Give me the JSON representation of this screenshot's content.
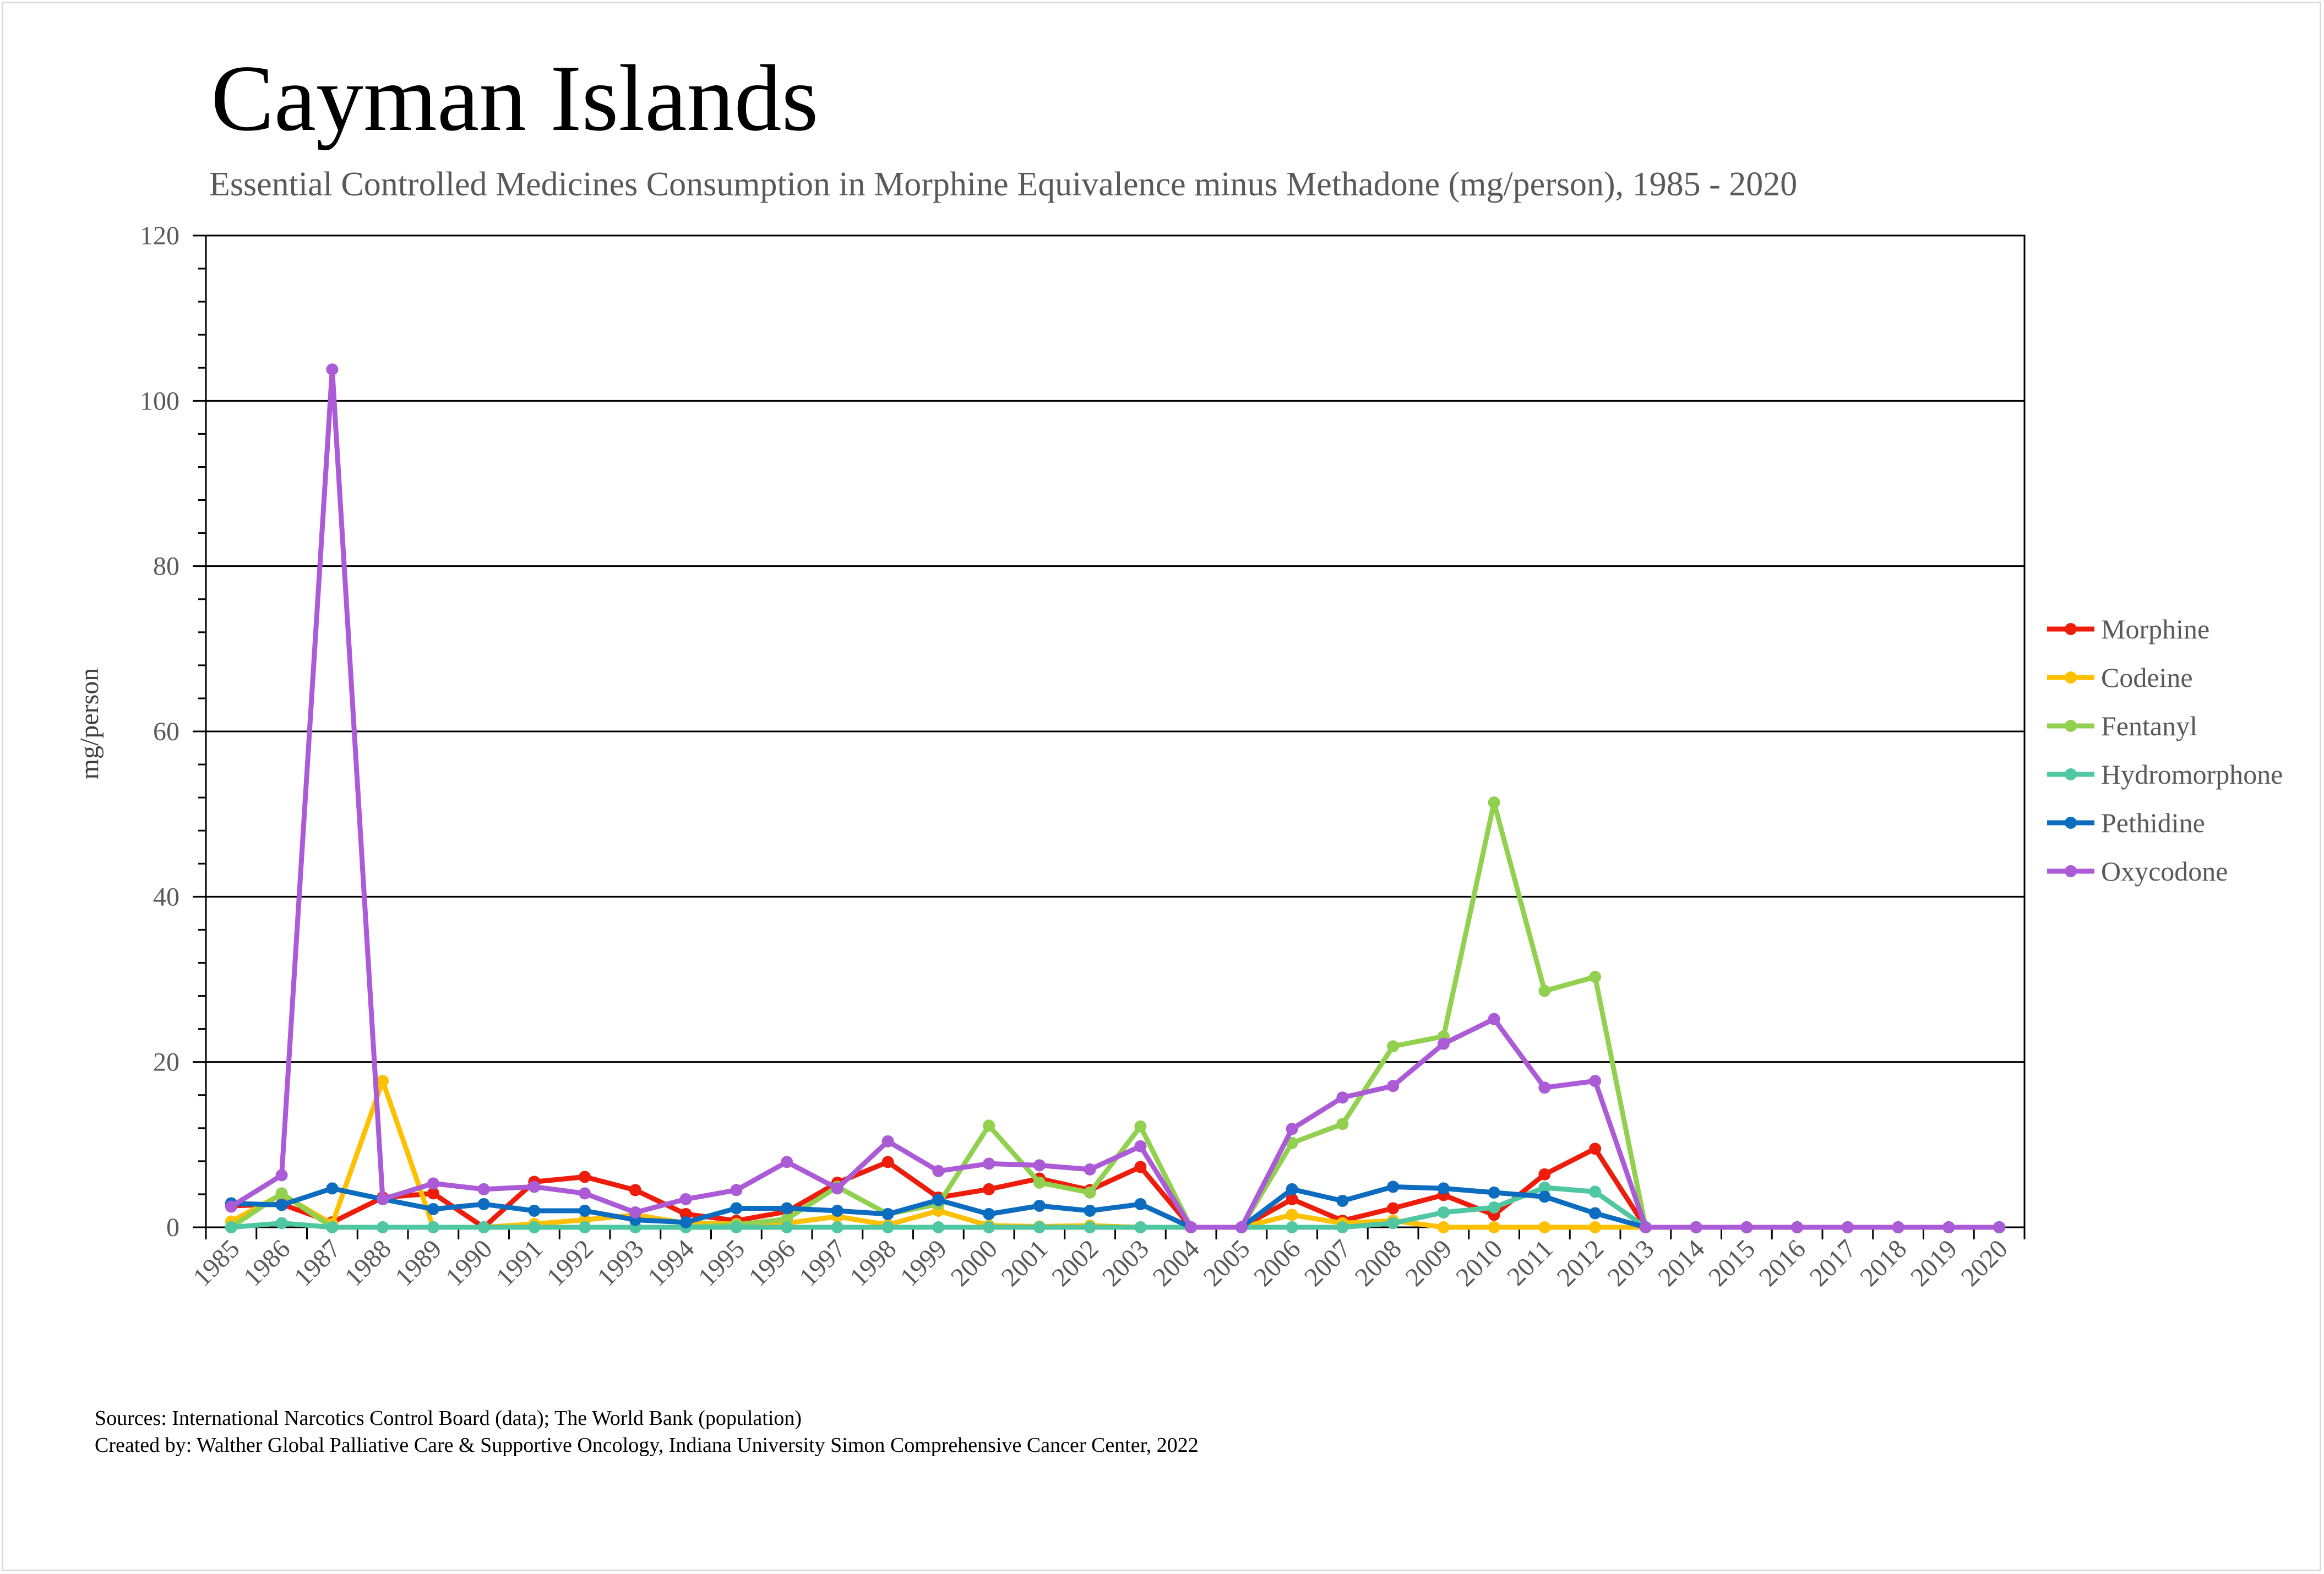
{
  "chart_data": {
    "type": "line",
    "title": "Cayman Islands",
    "subtitle": "Essential Controlled Medicines Consumption in Morphine Equivalence minus Methadone (mg/person), 1985 - 2020",
    "ylabel": "mg/person",
    "xlabel": "",
    "ylim": [
      0,
      120
    ],
    "yticks": [
      "0",
      "20",
      "40",
      "60",
      "80",
      "100",
      "120"
    ],
    "grid": true,
    "legend_position": "right",
    "categories": [
      "1985",
      "1986",
      "1987",
      "1988",
      "1989",
      "1990",
      "1991",
      "1992",
      "1993",
      "1994",
      "1995",
      "1996",
      "1997",
      "1998",
      "1999",
      "2000",
      "2001",
      "2002",
      "2003",
      "2004",
      "2005",
      "2006",
      "2007",
      "2008",
      "2009",
      "2010",
      "2011",
      "2012",
      "2013",
      "2014",
      "2015",
      "2016",
      "2017",
      "2018",
      "2019",
      "2020"
    ],
    "series": [
      {
        "name": "Morphine",
        "color": "#ee1c0a",
        "values": [
          2.6,
          2.8,
          0.6,
          3.6,
          4.1,
          0,
          5.5,
          6.1,
          4.5,
          1.6,
          0.8,
          1.9,
          5.4,
          7.9,
          3.6,
          4.6,
          5.9,
          4.5,
          7.3,
          0,
          0,
          3.4,
          0.8,
          2.3,
          3.9,
          1.5,
          6.4,
          9.5,
          0,
          0,
          0,
          0,
          0,
          0,
          0,
          0
        ]
      },
      {
        "name": "Codeine",
        "color": "#ffc000",
        "values": [
          0.7,
          4,
          0.4,
          17.7,
          0,
          0,
          0.4,
          0.9,
          1.5,
          0.5,
          0.4,
          0.5,
          1.3,
          0.3,
          2,
          0.2,
          0.1,
          0.2,
          0,
          0,
          0,
          1.5,
          0.5,
          0.8,
          0,
          0,
          0,
          0,
          0,
          0,
          0,
          0,
          0,
          0,
          0,
          0
        ]
      },
      {
        "name": "Fentanyl",
        "color": "#92d050",
        "values": [
          0,
          4.1,
          0,
          0,
          0,
          0,
          0,
          0,
          0,
          0,
          0.3,
          1,
          4.9,
          1.6,
          2.8,
          12.3,
          5.4,
          4.2,
          12.2,
          0,
          0,
          10.2,
          12.5,
          21.9,
          23.1,
          51.4,
          28.6,
          30.3,
          0,
          0,
          0,
          0,
          0,
          0,
          0,
          0
        ]
      },
      {
        "name": "Hydromorphone",
        "color": "#4fc7a0",
        "values": [
          0,
          0.5,
          0,
          0,
          0,
          0,
          0,
          0,
          0,
          0,
          0,
          0,
          0,
          0,
          0,
          0,
          0,
          0,
          0,
          0,
          0,
          0,
          0,
          0.5,
          1.8,
          2.4,
          4.8,
          4.3,
          0,
          0,
          0,
          0,
          0,
          0,
          0,
          0
        ]
      },
      {
        "name": "Pethidine",
        "color": "#0c6cbf",
        "values": [
          2.9,
          2.7,
          4.7,
          3.4,
          2.2,
          2.8,
          2,
          2,
          0.9,
          0.6,
          2.3,
          2.3,
          2,
          1.6,
          3.3,
          1.6,
          2.6,
          2,
          2.8,
          0,
          0,
          4.6,
          3.2,
          4.9,
          4.7,
          4.2,
          3.7,
          1.7,
          0,
          0,
          0,
          0,
          0,
          0,
          0,
          0
        ]
      },
      {
        "name": "Oxycodone",
        "color": "#ab5bd6",
        "values": [
          2.5,
          6.3,
          103.8,
          3.4,
          5.3,
          4.6,
          4.9,
          4.1,
          1.8,
          3.4,
          4.5,
          7.9,
          4.7,
          10.4,
          6.8,
          7.7,
          7.5,
          7,
          9.8,
          0,
          0,
          11.9,
          15.7,
          17.1,
          22.2,
          25.2,
          16.9,
          17.7,
          0,
          0,
          0,
          0,
          0,
          0,
          0,
          0
        ]
      }
    ]
  },
  "footer": {
    "sources": "Sources: International Narcotics Control Board (data); The World Bank (population)",
    "created_by": "Created by: Walther Global Palliative Care & Supportive Oncology, Indiana University Simon Comprehensive Cancer Center, 2022"
  }
}
